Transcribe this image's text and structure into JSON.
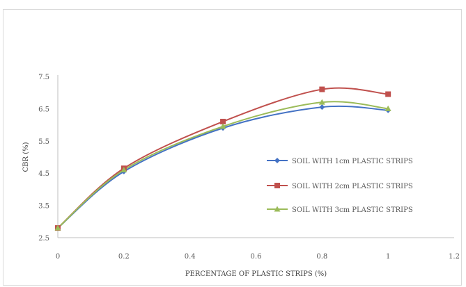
{
  "chart_data": {
    "type": "line",
    "x": [
      0,
      0.2,
      0.5,
      0.8,
      1
    ],
    "series": [
      {
        "name": "SOIL WITH 1cm PLASTIC STRIPS",
        "color": "#4472C4",
        "marker": "diamond",
        "values": [
          2.8,
          4.55,
          5.9,
          6.55,
          6.45
        ]
      },
      {
        "name": "SOIL WITH 2cm PLASTIC STRIPS",
        "color": "#C0504D",
        "marker": "square",
        "values": [
          2.8,
          4.65,
          6.1,
          7.1,
          6.95
        ]
      },
      {
        "name": "SOIL WITH 3cm PLASTIC STRIPS",
        "color": "#9BBB59",
        "marker": "triangle",
        "values": [
          2.8,
          4.6,
          5.95,
          6.7,
          6.5
        ]
      }
    ],
    "xlabel": "PERCENTAGE OF PLASTIC STRIPS (%)",
    "ylabel": "CBR (%)",
    "xlim": [
      0,
      1.2
    ],
    "ylim": [
      2.5,
      7.5
    ],
    "xticks": [
      "0",
      "0.2",
      "0.4",
      "0.6",
      "0.8",
      "1",
      "1.2"
    ],
    "yticks": [
      "2.5",
      "3.5",
      "4.5",
      "5.5",
      "6.5",
      "7.5"
    ],
    "grid": false,
    "legend_position": "right"
  }
}
